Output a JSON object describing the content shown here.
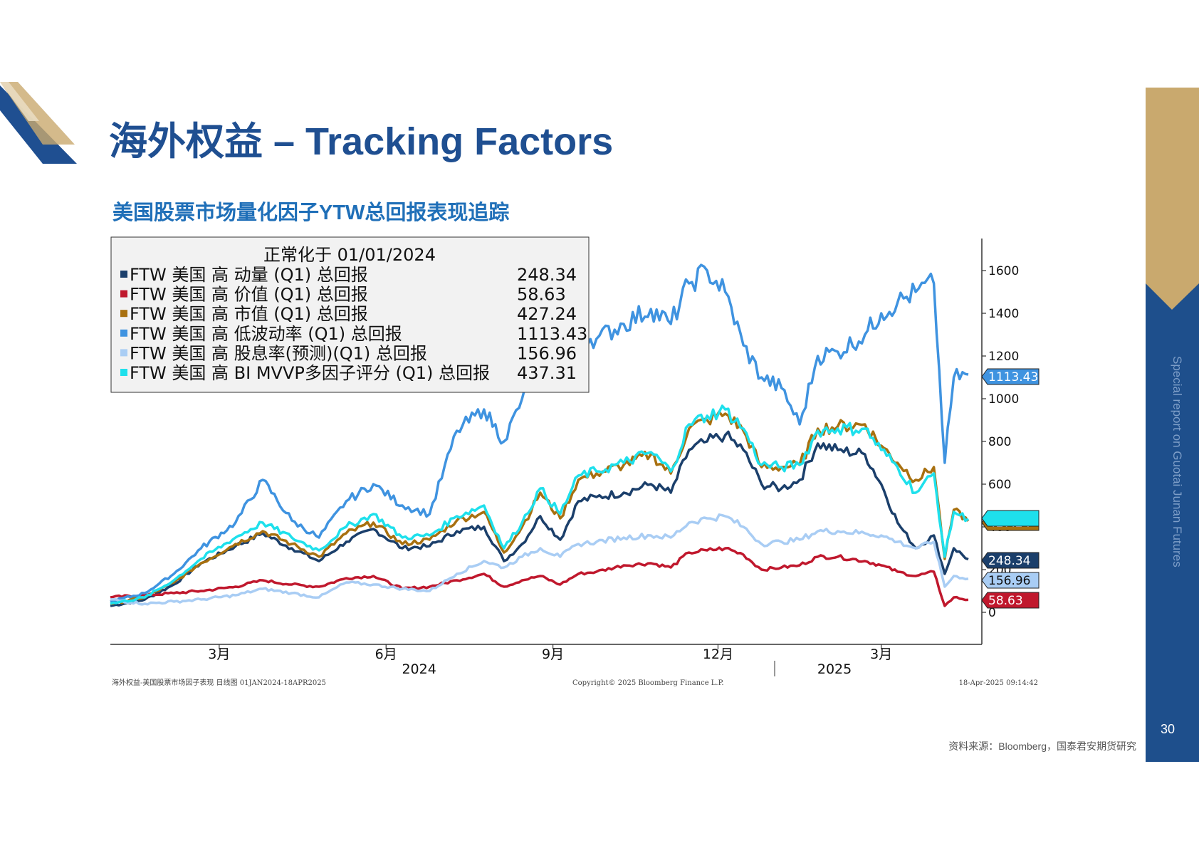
{
  "header": {
    "title": "海外权益 – Tracking Factors",
    "subtitle": "美国股票市场量化因子YTW总回报表现追踪"
  },
  "sidebar": {
    "vertical_text": "Special report on Guotai Junan Futures",
    "page_number": "30"
  },
  "footer": {
    "source": "资料来源：Bloomberg，国泰君安期货研究",
    "chart_caption": "海外权益-美国股票市场因子表现   日线图 01JAN2024-18APR2025",
    "copyright": "Copyright© 2025 Bloomberg Finance L.P.",
    "timestamp": "18-Apr-2025 09:14:42"
  },
  "colors": {
    "brand_blue": "#1f4f91",
    "sidebar": "#1e4f8c",
    "gold": "#c9a96e"
  },
  "chart_data": {
    "type": "line",
    "legend_title": "正常化于 01/01/2024",
    "legend_placement": "top-left",
    "ylim": [
      -150,
      1750
    ],
    "y_ticks": [
      0,
      200,
      400,
      600,
      800,
      1000,
      1200,
      1400,
      1600
    ],
    "y_tick_labels": [
      "0",
      "200",
      "400",
      "600",
      "800",
      "1000",
      "1200",
      "1400",
      "1600"
    ],
    "x_months": [
      "3月",
      "6月",
      "9月",
      "12月",
      "3月"
    ],
    "x_month_dates": [
      "2024-03-01",
      "2024-06-01",
      "2024-09-01",
      "2024-12-01",
      "2025-03-01"
    ],
    "x_years": [
      "2024",
      "2025"
    ],
    "x_range": [
      "2024-01-01",
      "2025-04-18"
    ],
    "grid": false,
    "series": [
      {
        "name": "FTW 美国 高 动量 (Q1) 总回报",
        "last_value": "248.34",
        "color": "#1b3f6b",
        "points": [
          [
            "2024-01-01",
            30
          ],
          [
            "2024-01-20",
            60
          ],
          [
            "2024-02-05",
            130
          ],
          [
            "2024-02-20",
            230
          ],
          [
            "2024-03-10",
            310
          ],
          [
            "2024-03-25",
            370
          ],
          [
            "2024-04-10",
            300
          ],
          [
            "2024-04-25",
            240
          ],
          [
            "2024-05-10",
            330
          ],
          [
            "2024-05-25",
            390
          ],
          [
            "2024-06-10",
            300
          ],
          [
            "2024-06-25",
            310
          ],
          [
            "2024-07-10",
            380
          ],
          [
            "2024-07-25",
            400
          ],
          [
            "2024-08-05",
            240
          ],
          [
            "2024-08-15",
            320
          ],
          [
            "2024-08-25",
            450
          ],
          [
            "2024-09-05",
            340
          ],
          [
            "2024-09-15",
            520
          ],
          [
            "2024-09-25",
            540
          ],
          [
            "2024-10-10",
            560
          ],
          [
            "2024-10-25",
            600
          ],
          [
            "2024-11-05",
            560
          ],
          [
            "2024-11-15",
            760
          ],
          [
            "2024-11-25",
            800
          ],
          [
            "2024-12-05",
            830
          ],
          [
            "2024-12-15",
            760
          ],
          [
            "2024-12-25",
            600
          ],
          [
            "2025-01-05",
            580
          ],
          [
            "2025-01-15",
            620
          ],
          [
            "2025-01-25",
            790
          ],
          [
            "2025-02-05",
            760
          ],
          [
            "2025-02-20",
            740
          ],
          [
            "2025-03-01",
            600
          ],
          [
            "2025-03-10",
            420
          ],
          [
            "2025-03-20",
            300
          ],
          [
            "2025-03-30",
            360
          ],
          [
            "2025-04-05",
            180
          ],
          [
            "2025-04-10",
            300
          ],
          [
            "2025-04-18",
            248.34
          ]
        ]
      },
      {
        "name": "FTW 美国 高 价值 (Q1) 总回报",
        "last_value": "58.63",
        "color": "#c0182d",
        "points": [
          [
            "2024-01-01",
            70
          ],
          [
            "2024-01-20",
            80
          ],
          [
            "2024-02-05",
            90
          ],
          [
            "2024-02-20",
            100
          ],
          [
            "2024-03-10",
            120
          ],
          [
            "2024-03-25",
            150
          ],
          [
            "2024-04-10",
            130
          ],
          [
            "2024-04-25",
            120
          ],
          [
            "2024-05-10",
            160
          ],
          [
            "2024-05-25",
            170
          ],
          [
            "2024-06-10",
            110
          ],
          [
            "2024-06-25",
            120
          ],
          [
            "2024-07-10",
            150
          ],
          [
            "2024-07-25",
            180
          ],
          [
            "2024-08-05",
            120
          ],
          [
            "2024-08-15",
            150
          ],
          [
            "2024-08-25",
            170
          ],
          [
            "2024-09-05",
            130
          ],
          [
            "2024-09-15",
            180
          ],
          [
            "2024-09-25",
            190
          ],
          [
            "2024-10-10",
            220
          ],
          [
            "2024-10-25",
            230
          ],
          [
            "2024-11-05",
            210
          ],
          [
            "2024-11-15",
            280
          ],
          [
            "2024-11-25",
            290
          ],
          [
            "2024-12-05",
            300
          ],
          [
            "2024-12-15",
            270
          ],
          [
            "2024-12-25",
            200
          ],
          [
            "2025-01-05",
            210
          ],
          [
            "2025-01-15",
            220
          ],
          [
            "2025-01-25",
            260
          ],
          [
            "2025-02-05",
            260
          ],
          [
            "2025-02-20",
            240
          ],
          [
            "2025-03-01",
            220
          ],
          [
            "2025-03-10",
            190
          ],
          [
            "2025-03-20",
            170
          ],
          [
            "2025-03-30",
            190
          ],
          [
            "2025-04-05",
            30
          ],
          [
            "2025-04-10",
            70
          ],
          [
            "2025-04-18",
            58.63
          ]
        ]
      },
      {
        "name": "FTW 美国 高 市值 (Q1) 总回报",
        "last_value": "427.24",
        "color": "#a8700f",
        "points": [
          [
            "2024-01-01",
            40
          ],
          [
            "2024-01-20",
            70
          ],
          [
            "2024-02-05",
            140
          ],
          [
            "2024-02-20",
            230
          ],
          [
            "2024-03-10",
            320
          ],
          [
            "2024-03-25",
            380
          ],
          [
            "2024-04-10",
            320
          ],
          [
            "2024-04-25",
            260
          ],
          [
            "2024-05-10",
            370
          ],
          [
            "2024-05-25",
            420
          ],
          [
            "2024-06-10",
            320
          ],
          [
            "2024-06-25",
            340
          ],
          [
            "2024-07-10",
            430
          ],
          [
            "2024-07-25",
            470
          ],
          [
            "2024-08-05",
            280
          ],
          [
            "2024-08-15",
            400
          ],
          [
            "2024-08-25",
            560
          ],
          [
            "2024-09-05",
            440
          ],
          [
            "2024-09-15",
            620
          ],
          [
            "2024-09-25",
            650
          ],
          [
            "2024-10-10",
            690
          ],
          [
            "2024-10-25",
            740
          ],
          [
            "2024-11-05",
            650
          ],
          [
            "2024-11-15",
            860
          ],
          [
            "2024-11-25",
            900
          ],
          [
            "2024-12-05",
            930
          ],
          [
            "2024-12-15",
            850
          ],
          [
            "2024-12-25",
            680
          ],
          [
            "2025-01-05",
            680
          ],
          [
            "2025-01-15",
            690
          ],
          [
            "2025-01-25",
            860
          ],
          [
            "2025-02-05",
            870
          ],
          [
            "2025-02-20",
            880
          ],
          [
            "2025-03-01",
            780
          ],
          [
            "2025-03-10",
            700
          ],
          [
            "2025-03-20",
            620
          ],
          [
            "2025-03-30",
            680
          ],
          [
            "2025-04-05",
            250
          ],
          [
            "2025-04-10",
            480
          ],
          [
            "2025-04-18",
            427.24
          ]
        ]
      },
      {
        "name": "FTW 美国 高 低波动率 (Q1) 总回报",
        "last_value": "1113.43",
        "color": "#3f93e0",
        "points": [
          [
            "2024-01-01",
            50
          ],
          [
            "2024-01-20",
            90
          ],
          [
            "2024-02-05",
            180
          ],
          [
            "2024-02-20",
            300
          ],
          [
            "2024-03-10",
            420
          ],
          [
            "2024-03-25",
            620
          ],
          [
            "2024-04-10",
            430
          ],
          [
            "2024-04-25",
            350
          ],
          [
            "2024-05-10",
            520
          ],
          [
            "2024-05-25",
            600
          ],
          [
            "2024-06-10",
            500
          ],
          [
            "2024-06-25",
            460
          ],
          [
            "2024-07-10",
            850
          ],
          [
            "2024-07-25",
            950
          ],
          [
            "2024-08-05",
            800
          ],
          [
            "2024-08-15",
            1000
          ],
          [
            "2024-08-25",
            1150
          ],
          [
            "2024-09-05",
            1250
          ],
          [
            "2024-09-15",
            1300
          ],
          [
            "2024-09-25",
            1280
          ],
          [
            "2024-10-10",
            1350
          ],
          [
            "2024-10-25",
            1420
          ],
          [
            "2024-11-05",
            1350
          ],
          [
            "2024-11-15",
            1540
          ],
          [
            "2024-11-25",
            1600
          ],
          [
            "2024-12-05",
            1500
          ],
          [
            "2024-12-15",
            1250
          ],
          [
            "2024-12-25",
            1100
          ],
          [
            "2025-01-05",
            1050
          ],
          [
            "2025-01-15",
            880
          ],
          [
            "2025-01-25",
            1200
          ],
          [
            "2025-02-05",
            1220
          ],
          [
            "2025-02-20",
            1300
          ],
          [
            "2025-03-01",
            1400
          ],
          [
            "2025-03-10",
            1450
          ],
          [
            "2025-03-20",
            1500
          ],
          [
            "2025-03-30",
            1540
          ],
          [
            "2025-04-05",
            700
          ],
          [
            "2025-04-10",
            1100
          ],
          [
            "2025-04-18",
            1113.43
          ]
        ]
      },
      {
        "name": "FTW 美国 高 股息率(预测)(Q1) 总回报",
        "last_value": "156.96",
        "color": "#a9cdf4",
        "points": [
          [
            "2024-01-01",
            60
          ],
          [
            "2024-01-20",
            40
          ],
          [
            "2024-02-05",
            50
          ],
          [
            "2024-02-20",
            60
          ],
          [
            "2024-03-10",
            80
          ],
          [
            "2024-03-25",
            110
          ],
          [
            "2024-04-10",
            90
          ],
          [
            "2024-04-25",
            70
          ],
          [
            "2024-05-10",
            140
          ],
          [
            "2024-05-25",
            130
          ],
          [
            "2024-06-10",
            110
          ],
          [
            "2024-06-25",
            100
          ],
          [
            "2024-07-10",
            180
          ],
          [
            "2024-07-25",
            240
          ],
          [
            "2024-08-05",
            210
          ],
          [
            "2024-08-15",
            260
          ],
          [
            "2024-08-25",
            300
          ],
          [
            "2024-09-05",
            260
          ],
          [
            "2024-09-15",
            320
          ],
          [
            "2024-09-25",
            330
          ],
          [
            "2024-10-10",
            350
          ],
          [
            "2024-10-25",
            360
          ],
          [
            "2024-11-05",
            350
          ],
          [
            "2024-11-15",
            420
          ],
          [
            "2024-11-25",
            440
          ],
          [
            "2024-12-05",
            450
          ],
          [
            "2024-12-15",
            400
          ],
          [
            "2024-12-25",
            320
          ],
          [
            "2025-01-05",
            330
          ],
          [
            "2025-01-15",
            340
          ],
          [
            "2025-01-25",
            380
          ],
          [
            "2025-02-05",
            380
          ],
          [
            "2025-02-20",
            370
          ],
          [
            "2025-03-01",
            360
          ],
          [
            "2025-03-10",
            330
          ],
          [
            "2025-03-20",
            300
          ],
          [
            "2025-03-30",
            330
          ],
          [
            "2025-04-05",
            120
          ],
          [
            "2025-04-10",
            170
          ],
          [
            "2025-04-18",
            156.96
          ]
        ]
      },
      {
        "name": "FTW 美国 高 BI MVVP多因子评分 (Q1) 总回报",
        "last_value": "437.31",
        "color": "#1ee0ec",
        "points": [
          [
            "2024-01-01",
            40
          ],
          [
            "2024-01-20",
            70
          ],
          [
            "2024-02-05",
            150
          ],
          [
            "2024-02-20",
            250
          ],
          [
            "2024-03-10",
            350
          ],
          [
            "2024-03-25",
            420
          ],
          [
            "2024-04-10",
            350
          ],
          [
            "2024-04-25",
            290
          ],
          [
            "2024-05-10",
            400
          ],
          [
            "2024-05-25",
            460
          ],
          [
            "2024-06-10",
            350
          ],
          [
            "2024-06-25",
            360
          ],
          [
            "2024-07-10",
            450
          ],
          [
            "2024-07-25",
            500
          ],
          [
            "2024-08-05",
            300
          ],
          [
            "2024-08-15",
            420
          ],
          [
            "2024-08-25",
            580
          ],
          [
            "2024-09-05",
            460
          ],
          [
            "2024-09-15",
            640
          ],
          [
            "2024-09-25",
            660
          ],
          [
            "2024-10-10",
            700
          ],
          [
            "2024-10-25",
            750
          ],
          [
            "2024-11-05",
            660
          ],
          [
            "2024-11-15",
            880
          ],
          [
            "2024-11-25",
            920
          ],
          [
            "2024-12-05",
            950
          ],
          [
            "2024-12-15",
            860
          ],
          [
            "2024-12-25",
            690
          ],
          [
            "2025-01-05",
            680
          ],
          [
            "2025-01-15",
            690
          ],
          [
            "2025-01-25",
            850
          ],
          [
            "2025-02-05",
            860
          ],
          [
            "2025-02-20",
            860
          ],
          [
            "2025-03-01",
            760
          ],
          [
            "2025-03-10",
            680
          ],
          [
            "2025-03-20",
            560
          ],
          [
            "2025-03-30",
            650
          ],
          [
            "2025-04-05",
            260
          ],
          [
            "2025-04-10",
            470
          ],
          [
            "2025-04-18",
            437.31
          ]
        ]
      }
    ]
  }
}
